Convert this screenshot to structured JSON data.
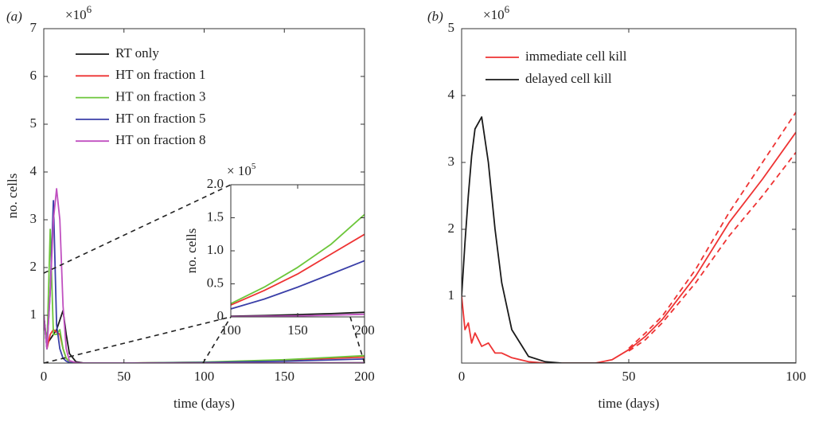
{
  "chart_data": [
    {
      "type": "line",
      "panel_label": "(a)",
      "xlabel": "time (days)",
      "ylabel": "no. cells",
      "y_multiplier": "×10",
      "y_multiplier_exponent": "6",
      "xlim": [
        0,
        200
      ],
      "ylim": [
        0,
        7
      ],
      "xticks": [
        0,
        50,
        100,
        150,
        200
      ],
      "yticks": [
        1,
        2,
        3,
        4,
        5,
        6,
        7
      ],
      "x": [
        0,
        2,
        4,
        6,
        8,
        10,
        12,
        14,
        16,
        20,
        25,
        30,
        50,
        100,
        150,
        200
      ],
      "legend": "upper left",
      "series": [
        {
          "name": "RT only",
          "color": "#1a1a1a",
          "values": [
            1.0,
            0.4,
            0.5,
            0.6,
            0.7,
            0.9,
            1.1,
            0.6,
            0.2,
            0.03,
            0,
            0,
            0,
            0.001,
            0.003,
            0.007
          ]
        },
        {
          "name": "HT on fraction 1",
          "color": "#ee3333",
          "values": [
            1.0,
            0.3,
            0.6,
            0.7,
            0.65,
            0.6,
            0.3,
            0.1,
            0.03,
            0,
            0,
            0,
            0,
            0.017,
            0.06,
            0.125
          ]
        },
        {
          "name": "HT on fraction 3",
          "color": "#6cc63a",
          "values": [
            1.0,
            0.3,
            2.8,
            0.6,
            0.6,
            0.7,
            0.3,
            0.1,
            0.03,
            0,
            0,
            0,
            0,
            0.02,
            0.07,
            0.155
          ]
        },
        {
          "name": "HT on fraction 5",
          "color": "#3a3fa8",
          "values": [
            1.0,
            0.3,
            1.5,
            3.4,
            0.8,
            0.3,
            0.1,
            0.04,
            0.01,
            0,
            0,
            0,
            0,
            0.012,
            0.04,
            0.085
          ]
        },
        {
          "name": "HT on fraction 8",
          "color": "#c050c0",
          "values": [
            1.0,
            0.3,
            1.5,
            3.0,
            3.65,
            3.0,
            1.2,
            0.3,
            0.05,
            0.01,
            0,
            0,
            0,
            0.001,
            0.002,
            0.004
          ]
        }
      ]
    },
    {
      "type": "line",
      "ylabel": "no. cells",
      "y_multiplier": "× 10",
      "y_multiplier_exponent": "5",
      "xlim": [
        100,
        200
      ],
      "ylim": [
        0,
        2
      ],
      "xticks": [
        100,
        150,
        200
      ],
      "yticks": [
        0,
        0.5,
        {
          "value": 1,
          "label": "1.0"
        },
        1.5,
        {
          "value": 2,
          "label": "2.0"
        }
      ],
      "x": [
        100,
        125,
        150,
        175,
        200
      ],
      "series": [
        {
          "color": "#1a1a1a",
          "values": [
            0.01,
            0.02,
            0.035,
            0.05,
            0.07
          ]
        },
        {
          "color": "#ee3333",
          "values": [
            0.18,
            0.4,
            0.65,
            0.95,
            1.25
          ]
        },
        {
          "color": "#6cc63a",
          "values": [
            0.2,
            0.45,
            0.75,
            1.1,
            1.55
          ]
        },
        {
          "color": "#3a3fa8",
          "values": [
            0.12,
            0.27,
            0.45,
            0.65,
            0.85
          ]
        },
        {
          "color": "#c050c0",
          "values": [
            0.005,
            0.01,
            0.015,
            0.025,
            0.04
          ]
        }
      ]
    },
    {
      "type": "line",
      "panel_label": "(b)",
      "xlabel": "time (days)",
      "y_multiplier": "×10",
      "y_multiplier_exponent": "6",
      "xlim": [
        0,
        100
      ],
      "ylim": [
        0,
        5
      ],
      "xticks": [
        0,
        50,
        100
      ],
      "yticks": [
        1,
        2,
        3,
        4,
        5
      ],
      "x": [
        0,
        1,
        2,
        3,
        4,
        6,
        8,
        10,
        12,
        15,
        20,
        25,
        30,
        40,
        45,
        50,
        55,
        60,
        70,
        80,
        90,
        100
      ],
      "legend": "upper left",
      "series": [
        {
          "name": "immediate cell kill",
          "color": "#ee3333",
          "values": [
            1.0,
            0.5,
            0.6,
            0.3,
            0.45,
            0.25,
            0.3,
            0.15,
            0.15,
            0.08,
            0.02,
            0,
            0,
            0,
            0.05,
            0.2,
            0.4,
            0.65,
            1.3,
            2.1,
            2.75,
            3.45
          ],
          "upper": [
            null,
            null,
            null,
            null,
            null,
            null,
            null,
            null,
            null,
            null,
            null,
            null,
            null,
            null,
            null,
            0.22,
            0.45,
            0.7,
            1.4,
            2.25,
            3.0,
            3.75
          ],
          "lower": [
            null,
            null,
            null,
            null,
            null,
            null,
            null,
            null,
            null,
            null,
            null,
            null,
            null,
            null,
            null,
            0.18,
            0.35,
            0.6,
            1.2,
            1.9,
            2.5,
            3.15
          ]
        },
        {
          "name": "delayed cell kill",
          "color": "#1a1a1a",
          "values": [
            1.0,
            1.8,
            2.5,
            3.1,
            3.5,
            3.68,
            3.0,
            2.0,
            1.2,
            0.5,
            0.1,
            0.02,
            0,
            0,
            0,
            0,
            0,
            0,
            0,
            0,
            0,
            0
          ]
        }
      ]
    }
  ]
}
